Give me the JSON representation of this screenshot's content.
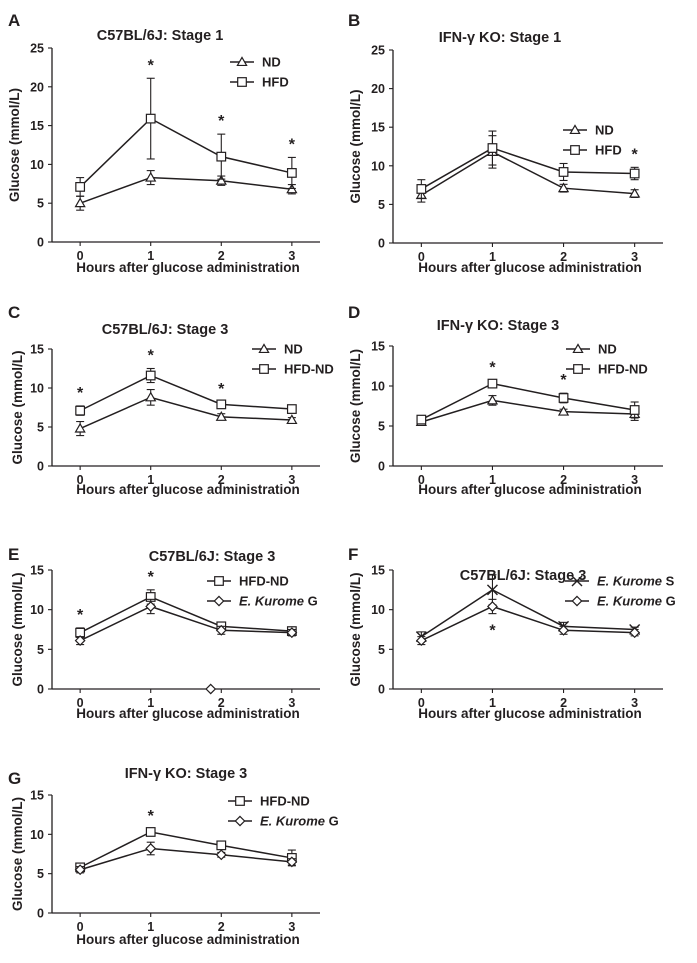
{
  "chart_data": [
    {
      "panel": "A",
      "type": "line",
      "title": "C57BL/6J: Stage 1",
      "xlabel": "Hours after glucose administration",
      "ylabel": "Glucose (mmol/L)",
      "x": [
        0,
        1,
        2,
        3
      ],
      "xticks": [
        "0",
        "1",
        "2",
        "3"
      ],
      "ylim": [
        0,
        25
      ],
      "yticks": [
        0,
        5,
        10,
        15,
        20,
        25
      ],
      "grid": false,
      "legend_position": "top-right",
      "series": [
        {
          "name": "ND",
          "marker": "triangle",
          "values": [
            5.0,
            8.3,
            7.9,
            6.8
          ],
          "errors": [
            0.9,
            0.9,
            0.6,
            0.6
          ]
        },
        {
          "name": "HFD",
          "marker": "square",
          "values": [
            7.1,
            15.9,
            11.0,
            8.9
          ],
          "errors": [
            1.2,
            5.2,
            2.9,
            2.0
          ]
        }
      ],
      "significance": [
        "",
        "*",
        "*",
        "*"
      ]
    },
    {
      "panel": "B",
      "type": "line",
      "title": "IFN-γ KO: Stage 1",
      "xlabel": "Hours after glucose administration",
      "ylabel": "Glucose (mmol/L)",
      "x": [
        0,
        1,
        2,
        3
      ],
      "xticks": [
        "0",
        "1",
        "2",
        "3"
      ],
      "ylim": [
        0,
        25
      ],
      "yticks": [
        0,
        5,
        10,
        15,
        20,
        25
      ],
      "grid": false,
      "legend_position": "right",
      "series": [
        {
          "name": "ND",
          "marker": "triangle",
          "values": [
            6.2,
            11.8,
            7.1,
            6.4
          ],
          "errors": [
            0.9,
            2.1,
            0.5,
            0.5
          ]
        },
        {
          "name": "HFD",
          "marker": "square",
          "values": [
            7.0,
            12.3,
            9.2,
            9.0
          ],
          "errors": [
            1.2,
            2.2,
            1.1,
            0.8
          ]
        }
      ],
      "significance": [
        "",
        "",
        "",
        "*"
      ]
    },
    {
      "panel": "C",
      "type": "line",
      "title": "C57BL/6J: Stage 3",
      "xlabel": "Hours after glucose administration",
      "ylabel": "Glucose (mmol/L)",
      "x": [
        0,
        1,
        2,
        3
      ],
      "xticks": [
        "0",
        "1",
        "2",
        "3"
      ],
      "ylim": [
        0,
        15
      ],
      "yticks": [
        0,
        5,
        10,
        15
      ],
      "grid": false,
      "legend_position": "top-right",
      "series": [
        {
          "name": "ND",
          "marker": "triangle",
          "values": [
            4.8,
            8.8,
            6.3,
            5.9
          ],
          "errors": [
            0.9,
            1.0,
            0.4,
            0.3
          ]
        },
        {
          "name": "HFD-ND",
          "marker": "square",
          "values": [
            7.1,
            11.6,
            7.9,
            7.3
          ],
          "errors": [
            0.6,
            0.9,
            0.3,
            0.3
          ]
        }
      ],
      "significance": [
        "*",
        "*",
        "*",
        ""
      ]
    },
    {
      "panel": "D",
      "type": "line",
      "title": "IFN-γ KO: Stage 3",
      "xlabel": "Hours after glucose administration",
      "ylabel": "Glucose (mmol/L)",
      "x": [
        0,
        1,
        2,
        3
      ],
      "xticks": [
        "0",
        "1",
        "2",
        "3"
      ],
      "ylim": [
        0,
        15
      ],
      "yticks": [
        0,
        5,
        10,
        15
      ],
      "grid": false,
      "legend_position": "top-right",
      "series": [
        {
          "name": "ND",
          "marker": "triangle",
          "values": [
            5.5,
            8.2,
            6.8,
            6.5
          ],
          "errors": [
            0.4,
            0.6,
            0.3,
            0.8
          ]
        },
        {
          "name": "HFD-ND",
          "marker": "square",
          "values": [
            5.8,
            10.3,
            8.5,
            7.0
          ],
          "errors": [
            0.4,
            0.4,
            0.6,
            1.0
          ]
        }
      ],
      "significance": [
        "",
        "*",
        "*",
        ""
      ]
    },
    {
      "panel": "E",
      "type": "line",
      "title": "C57BL/6J: Stage 3",
      "xlabel": "Hours after glucose administration",
      "ylabel": "Glucose (mmol/L)",
      "x": [
        0,
        1,
        2,
        3
      ],
      "xticks": [
        "0",
        "1",
        "2",
        "3"
      ],
      "ylim": [
        0,
        15
      ],
      "yticks": [
        0,
        5,
        10,
        15
      ],
      "grid": false,
      "legend_position": "top-right",
      "series": [
        {
          "name": "HFD-ND",
          "marker": "square",
          "values": [
            7.1,
            11.6,
            7.9,
            7.3
          ],
          "errors": [
            0.6,
            0.9,
            0.3,
            0.3
          ]
        },
        {
          "name": "E. Kurome G",
          "name_italic": "E. Kurome",
          "name_suffix": " G",
          "marker": "diamond",
          "values": [
            6.1,
            10.4,
            7.4,
            7.1
          ],
          "errors": [
            0.5,
            0.9,
            0.5,
            0.4
          ]
        }
      ],
      "significance": [
        "*",
        "*",
        "",
        ""
      ],
      "stray_marker": {
        "marker": "diamond",
        "x": 1.85,
        "y": 0.0
      }
    },
    {
      "panel": "F",
      "type": "line",
      "title": "C57BL/6J: Stage 3",
      "xlabel": "Hours after glucose administration",
      "ylabel": "Glucose (mmol/L)",
      "x": [
        0,
        1,
        2,
        3
      ],
      "xticks": [
        "0",
        "1",
        "2",
        "3"
      ],
      "ylim": [
        0,
        15
      ],
      "yticks": [
        0,
        5,
        10,
        15
      ],
      "grid": false,
      "legend_position": "top-right",
      "series": [
        {
          "name": "E. Kurome S",
          "name_italic": "E. Kurome",
          "name_suffix": " S",
          "marker": "cross",
          "values": [
            6.6,
            12.5,
            7.9,
            7.5
          ],
          "errors": [
            0.6,
            1.9,
            0.5,
            0.3
          ]
        },
        {
          "name": "E. Kurome G",
          "name_italic": "E. Kurome",
          "name_suffix": " G",
          "marker": "diamond",
          "values": [
            6.1,
            10.4,
            7.4,
            7.1
          ],
          "errors": [
            0.5,
            0.9,
            0.5,
            0.4
          ]
        }
      ],
      "significance": [
        "",
        "*",
        "",
        ""
      ],
      "significance_below": true
    },
    {
      "panel": "G",
      "type": "line",
      "title": "IFN-γ KO: Stage 3",
      "xlabel": "Hours after glucose administration",
      "ylabel": "Glucose (mmol/L)",
      "x": [
        0,
        1,
        2,
        3
      ],
      "xticks": [
        "0",
        "1",
        "2",
        "3"
      ],
      "ylim": [
        0,
        15
      ],
      "yticks": [
        0,
        5,
        10,
        15
      ],
      "grid": false,
      "legend_position": "top-right",
      "series": [
        {
          "name": "HFD-ND",
          "marker": "square",
          "values": [
            5.8,
            10.3,
            8.6,
            7.0
          ],
          "errors": [
            0.4,
            0.4,
            0.5,
            1.0
          ]
        },
        {
          "name": "E. Kurome G",
          "name_italic": "E. Kurome",
          "name_suffix": " G",
          "marker": "diamond",
          "values": [
            5.5,
            8.2,
            7.4,
            6.5
          ],
          "errors": [
            0.4,
            0.8,
            0.3,
            0.4
          ]
        }
      ],
      "significance": [
        "",
        "*",
        "",
        ""
      ]
    }
  ]
}
